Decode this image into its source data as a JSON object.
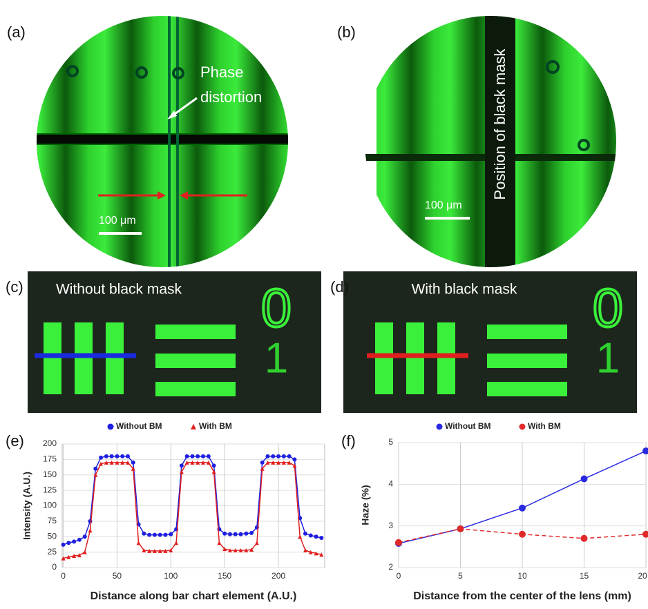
{
  "panels": {
    "a": {
      "label": "(a)",
      "annotation": [
        "Phase",
        "distortion"
      ],
      "scale_bar": "100 μm"
    },
    "b": {
      "label": "(b)",
      "annotation": "Position of black mask",
      "scale_bar": "100 μm"
    },
    "c": {
      "label": "(c)",
      "caption": "Without black mask",
      "digits": [
        "0",
        "1"
      ]
    },
    "d": {
      "label": "(d)",
      "caption": "With black mask",
      "digits": [
        "0",
        "1"
      ]
    },
    "e": {
      "label": "(e)"
    },
    "f": {
      "label": "(f)"
    }
  },
  "chart_data": [
    {
      "type": "line",
      "x_label": "Distance along bar chart element (A.U.)",
      "y_label": "Intensity (A.U.)",
      "x": [
        0,
        5,
        10,
        15,
        20,
        25,
        30,
        35,
        40,
        45,
        50,
        55,
        60,
        65,
        70,
        75,
        80,
        85,
        90,
        95,
        100,
        105,
        110,
        115,
        120,
        125,
        130,
        135,
        140,
        145,
        150,
        155,
        160,
        165,
        170,
        175,
        180,
        185,
        190,
        195,
        200,
        205,
        210,
        215,
        220,
        225,
        230,
        235,
        240
      ],
      "series": [
        {
          "name": "Without BM",
          "color": "#1f1fe0",
          "marker": "circle",
          "dashed": false,
          "values": [
            37,
            40,
            42,
            45,
            50,
            75,
            160,
            178,
            180,
            180,
            180,
            180,
            180,
            170,
            70,
            55,
            53,
            53,
            53,
            53,
            54,
            62,
            165,
            180,
            180,
            180,
            180,
            180,
            165,
            62,
            55,
            54,
            54,
            54,
            55,
            56,
            65,
            170,
            180,
            180,
            180,
            180,
            180,
            175,
            80,
            55,
            52,
            50,
            48
          ]
        },
        {
          "name": "With BM",
          "color": "#e01f1f",
          "marker": "triangle",
          "dashed": false,
          "values": [
            15,
            17,
            19,
            20,
            25,
            60,
            150,
            168,
            170,
            170,
            170,
            170,
            170,
            160,
            40,
            28,
            27,
            27,
            27,
            27,
            28,
            40,
            155,
            170,
            170,
            170,
            170,
            170,
            155,
            40,
            30,
            28,
            28,
            28,
            28,
            29,
            40,
            160,
            170,
            170,
            170,
            170,
            170,
            165,
            50,
            28,
            25,
            23,
            21
          ]
        }
      ],
      "xlim": [
        -1,
        243
      ],
      "xticks": [
        0,
        50,
        100,
        150,
        200
      ],
      "ylim": [
        0,
        200
      ],
      "yticks": [
        0,
        25,
        50,
        75,
        100,
        125,
        150,
        175,
        200
      ],
      "grid": true,
      "legend": "top"
    },
    {
      "type": "line",
      "x_label": "Distance from the center of the lens (mm)",
      "y_label": "Haze (%)",
      "x": [
        0,
        5,
        10,
        15,
        20
      ],
      "series": [
        {
          "name": "Without BM",
          "color": "#2a2ae0",
          "marker": "circle",
          "dashed": false,
          "values": [
            2.58,
            2.93,
            3.43,
            4.13,
            4.8
          ]
        },
        {
          "name": "With BM",
          "color": "#e02a2a",
          "marker": "circle",
          "dashed": true,
          "values": [
            2.6,
            2.93,
            2.8,
            2.7,
            2.8
          ]
        }
      ],
      "xlim": [
        0,
        20
      ],
      "xticks": [
        0,
        5,
        10,
        15,
        20
      ],
      "ylim": [
        2,
        5
      ],
      "yticks": [
        2,
        3,
        4,
        5
      ],
      "grid": true,
      "legend": "top"
    }
  ]
}
